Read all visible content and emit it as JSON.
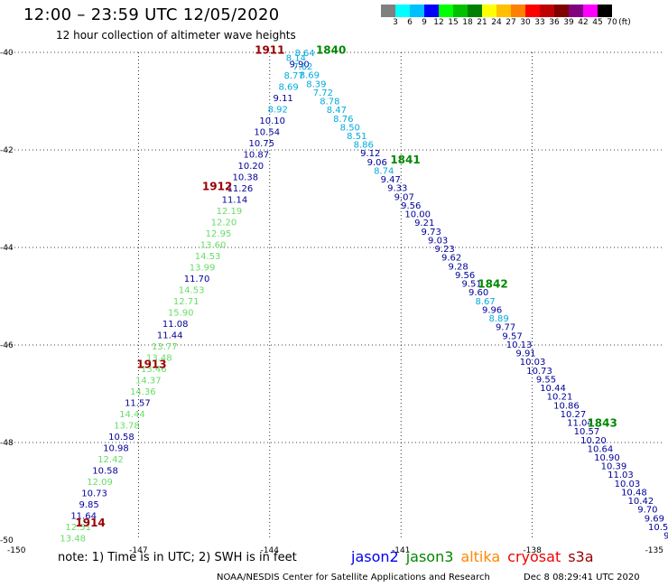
{
  "title": "12:00 – 23:59 UTC 12/05/2020",
  "subtitle": "12 hour collection of altimeter wave heights",
  "legend": {
    "colors": [
      "#808080",
      "#00ffff",
      "#00c0ff",
      "#0000ff",
      "#00ff00",
      "#00c000",
      "#008000",
      "#ffff00",
      "#ffc000",
      "#ff8000",
      "#ff0000",
      "#c00000",
      "#800000",
      "#800080",
      "#ff00ff",
      "#000000"
    ],
    "labels": [
      "3",
      "6",
      "9",
      "12",
      "15",
      "18",
      "21",
      "24",
      "27",
      "30",
      "33",
      "36",
      "39",
      "42",
      "45",
      "70"
    ],
    "unit": "(ft)"
  },
  "axes": {
    "lat_ticks": [
      "-40",
      "-42",
      "-44",
      "-46",
      "-48",
      "-50"
    ],
    "lon_ticks": [
      "-150",
      "-147",
      "-144",
      "-141",
      "-138",
      "-135"
    ]
  },
  "colors": {
    "light": "#66dd66",
    "mid": "#00aadd",
    "dark": "#000099",
    "time_red": "#990000",
    "time_green": "#008800"
  },
  "tracks": [
    {
      "lon0": -143.2,
      "lat0": -40.0,
      "lon1": -148.5,
      "lat1": -49.95,
      "values": [
        {
          "v": "8.64",
          "c": "mid"
        },
        {
          "v": "9.90",
          "c": "dark"
        },
        {
          "v": "8.77",
          "c": "mid"
        },
        {
          "v": "8.69",
          "c": "mid"
        },
        {
          "v": "9.11",
          "c": "dark"
        },
        {
          "v": "8.92",
          "c": "mid"
        },
        {
          "v": "10.10",
          "c": "dark"
        },
        {
          "v": "10.54",
          "c": "dark"
        },
        {
          "v": "10.75",
          "c": "dark"
        },
        {
          "v": "10.87",
          "c": "dark"
        },
        {
          "v": "10.20",
          "c": "dark"
        },
        {
          "v": "10.38",
          "c": "dark"
        },
        {
          "v": "11.26",
          "c": "dark"
        },
        {
          "v": "11.14",
          "c": "dark"
        },
        {
          "v": "12.19",
          "c": "light"
        },
        {
          "v": "12.20",
          "c": "light"
        },
        {
          "v": "12.95",
          "c": "light"
        },
        {
          "v": "13.60",
          "c": "light"
        },
        {
          "v": "14.53",
          "c": "light"
        },
        {
          "v": "13.99",
          "c": "light"
        },
        {
          "v": "11.70",
          "c": "dark"
        },
        {
          "v": "14.53",
          "c": "light"
        },
        {
          "v": "12.71",
          "c": "light"
        },
        {
          "v": "15.90",
          "c": "light"
        },
        {
          "v": "11.08",
          "c": "dark"
        },
        {
          "v": "11.44",
          "c": "dark"
        },
        {
          "v": "13.77",
          "c": "light"
        },
        {
          "v": "13.48",
          "c": "light"
        },
        {
          "v": "13.46",
          "c": "light"
        },
        {
          "v": "14.37",
          "c": "light"
        },
        {
          "v": "14.36",
          "c": "light"
        },
        {
          "v": "11.57",
          "c": "dark"
        },
        {
          "v": "14.44",
          "c": "light"
        },
        {
          "v": "13.78",
          "c": "light"
        },
        {
          "v": "10.58",
          "c": "dark"
        },
        {
          "v": "10.98",
          "c": "dark"
        },
        {
          "v": "12.42",
          "c": "light"
        },
        {
          "v": "10.58",
          "c": "dark"
        },
        {
          "v": "12.09",
          "c": "light"
        },
        {
          "v": "10.73",
          "c": "dark"
        },
        {
          "v": "9.85",
          "c": "dark"
        },
        {
          "v": "11.64",
          "c": "dark"
        },
        {
          "v": "12.51",
          "c": "light"
        },
        {
          "v": "13.48",
          "c": "light"
        }
      ]
    },
    {
      "lon0": -143.4,
      "lat0": -40.1,
      "lon1": -134.9,
      "lat1": -49.9,
      "values": [
        {
          "v": "8.14",
          "c": "mid"
        },
        {
          "v": "7.62",
          "c": "mid"
        },
        {
          "v": "8.69",
          "c": "mid"
        },
        {
          "v": "8.39",
          "c": "mid"
        },
        {
          "v": "7.72",
          "c": "mid"
        },
        {
          "v": "8.78",
          "c": "mid"
        },
        {
          "v": "8.47",
          "c": "mid"
        },
        {
          "v": "8.76",
          "c": "mid"
        },
        {
          "v": "8.50",
          "c": "mid"
        },
        {
          "v": "8.51",
          "c": "mid"
        },
        {
          "v": "8.86",
          "c": "mid"
        },
        {
          "v": "9.12",
          "c": "dark"
        },
        {
          "v": "9.06",
          "c": "dark"
        },
        {
          "v": "8.74",
          "c": "mid"
        },
        {
          "v": "9.47",
          "c": "dark"
        },
        {
          "v": "9.33",
          "c": "dark"
        },
        {
          "v": "9.07",
          "c": "dark"
        },
        {
          "v": "9.56",
          "c": "dark"
        },
        {
          "v": "10.00",
          "c": "dark"
        },
        {
          "v": "9.21",
          "c": "dark"
        },
        {
          "v": "9.73",
          "c": "dark"
        },
        {
          "v": "9.03",
          "c": "dark"
        },
        {
          "v": "9.23",
          "c": "dark"
        },
        {
          "v": "9.62",
          "c": "dark"
        },
        {
          "v": "9.28",
          "c": "dark"
        },
        {
          "v": "9.56",
          "c": "dark"
        },
        {
          "v": "9.51",
          "c": "dark"
        },
        {
          "v": "9.60",
          "c": "dark"
        },
        {
          "v": "8.67",
          "c": "mid"
        },
        {
          "v": "9.96",
          "c": "dark"
        },
        {
          "v": "8.89",
          "c": "mid"
        },
        {
          "v": "9.77",
          "c": "dark"
        },
        {
          "v": "9.57",
          "c": "dark"
        },
        {
          "v": "10.13",
          "c": "dark"
        },
        {
          "v": "9.91",
          "c": "dark"
        },
        {
          "v": "10.03",
          "c": "dark"
        },
        {
          "v": "10.73",
          "c": "dark"
        },
        {
          "v": "9.55",
          "c": "dark"
        },
        {
          "v": "10.44",
          "c": "dark"
        },
        {
          "v": "10.21",
          "c": "dark"
        },
        {
          "v": "10.86",
          "c": "dark"
        },
        {
          "v": "10.27",
          "c": "dark"
        },
        {
          "v": "11.04",
          "c": "dark"
        },
        {
          "v": "10.57",
          "c": "dark"
        },
        {
          "v": "10.20",
          "c": "dark"
        },
        {
          "v": "10.64",
          "c": "dark"
        },
        {
          "v": "10.90",
          "c": "dark"
        },
        {
          "v": "10.39",
          "c": "dark"
        },
        {
          "v": "11.03",
          "c": "dark"
        },
        {
          "v": "10.03",
          "c": "dark"
        },
        {
          "v": "10.48",
          "c": "dark"
        },
        {
          "v": "10.42",
          "c": "dark"
        },
        {
          "v": "9.70",
          "c": "dark"
        },
        {
          "v": "9.69",
          "c": "dark"
        },
        {
          "v": "10.50",
          "c": "dark"
        },
        {
          "v": "9.",
          "c": "dark"
        }
      ]
    }
  ],
  "time_labels": [
    {
      "text": "1911",
      "lon": -144.0,
      "lat": -39.95,
      "c": "time_red"
    },
    {
      "text": "1840",
      "lon": -142.6,
      "lat": -39.95,
      "c": "time_green"
    },
    {
      "text": "1912",
      "lon": -145.2,
      "lat": -42.75,
      "c": "time_red"
    },
    {
      "text": "1841",
      "lon": -140.9,
      "lat": -42.2,
      "c": "time_green"
    },
    {
      "text": "1913",
      "lon": -146.7,
      "lat": -46.4,
      "c": "time_red"
    },
    {
      "text": "1842",
      "lon": -138.9,
      "lat": -44.75,
      "c": "time_green"
    },
    {
      "text": "1914",
      "lon": -148.1,
      "lat": -49.65,
      "c": "time_red"
    },
    {
      "text": "1843",
      "lon": -136.4,
      "lat": -47.6,
      "c": "time_green"
    }
  ],
  "note": "note:  1) Time is in UTC;  2) SWH is in feet",
  "satellites": [
    {
      "name": "jason2",
      "color": "#0000ee"
    },
    {
      "name": "jason3",
      "color": "#008800"
    },
    {
      "name": "altika",
      "color": "#ff8800"
    },
    {
      "name": "cryosat",
      "color": "#ee0000"
    },
    {
      "name": "s3a",
      "color": "#990000"
    }
  ],
  "footer_left": "NOAA/NESDIS Center for Satellite Applications and Research",
  "footer_right": "Dec  8 08:29:41 UTC 2020"
}
